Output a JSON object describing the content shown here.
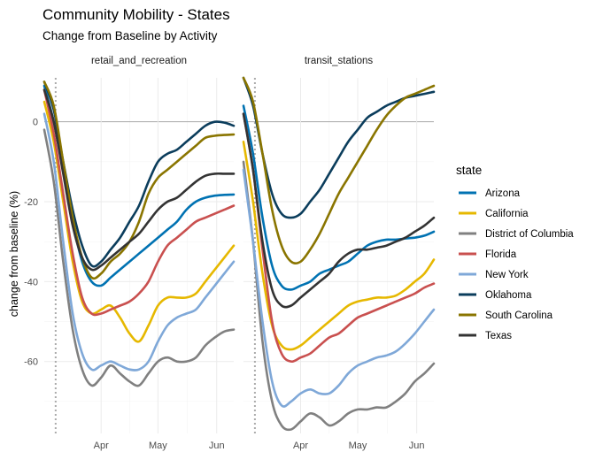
{
  "chart_data": {
    "type": "line",
    "title": "Community Mobility - States",
    "subtitle": "Change from Baseline by Activity",
    "ylabel": "change from baseline (%)",
    "xlabel": "",
    "ylim": [
      -78,
      11
    ],
    "y_ticks": [
      0,
      -20,
      -40,
      -60
    ],
    "x_range_days": [
      0,
      100
    ],
    "x_ticks": [
      {
        "label": "Apr",
        "day": 30
      },
      {
        "label": "May",
        "day": 60
      },
      {
        "label": "Jun",
        "day": 91
      }
    ],
    "reference_day": 6,
    "legend_title": "state",
    "legend_position": "right",
    "grid": true,
    "panels": [
      {
        "name": "retail_and_recreation",
        "series": [
          {
            "name": "Arizona",
            "color": "#0072b2",
            "x": [
              0,
              5,
              10,
              15,
              20,
              25,
              30,
              35,
              40,
              45,
              50,
              55,
              60,
              65,
              70,
              75,
              80,
              85,
              90,
              95,
              100
            ],
            "y": [
              9,
              0,
              -12,
              -25,
              -35,
              -40,
              -41,
              -39,
              -37,
              -35,
              -33,
              -31,
              -29,
              -27,
              -25,
              -22,
              -20,
              -19,
              -18.5,
              -18.3,
              -18.2
            ]
          },
          {
            "name": "California",
            "color": "#e6b800",
            "x": [
              0,
              5,
              10,
              15,
              20,
              25,
              30,
              35,
              40,
              45,
              50,
              55,
              60,
              65,
              70,
              75,
              80,
              85,
              90,
              95,
              100
            ],
            "y": [
              5,
              -5,
              -20,
              -35,
              -45,
              -48,
              -47,
              -46,
              -49,
              -53,
              -55,
              -51,
              -46,
              -44,
              -44,
              -44,
              -43,
              -40,
              -37,
              -34,
              -31
            ]
          },
          {
            "name": "District of Columbia",
            "color": "#808080",
            "x": [
              0,
              5,
              10,
              15,
              20,
              25,
              30,
              35,
              40,
              45,
              50,
              55,
              60,
              65,
              70,
              75,
              80,
              85,
              90,
              95,
              100
            ],
            "y": [
              -2,
              -15,
              -35,
              -52,
              -62,
              -66,
              -64,
              -61,
              -63,
              -65,
              -66,
              -63,
              -60,
              -59,
              -60,
              -60,
              -59,
              -56,
              -54,
              -52.5,
              -52
            ]
          },
          {
            "name": "Florida",
            "color": "#c9504f",
            "x": [
              0,
              5,
              10,
              15,
              20,
              25,
              30,
              35,
              40,
              45,
              50,
              55,
              60,
              65,
              70,
              75,
              80,
              85,
              90,
              95,
              100
            ],
            "y": [
              8,
              -3,
              -18,
              -33,
              -44,
              -48,
              -48,
              -47,
              -46,
              -45,
              -43,
              -40,
              -35,
              -31,
              -29,
              -27,
              -25,
              -24,
              -23,
              -22,
              -21
            ]
          },
          {
            "name": "New York",
            "color": "#7fa8d8",
            "x": [
              0,
              5,
              10,
              15,
              20,
              25,
              30,
              35,
              40,
              45,
              50,
              55,
              60,
              65,
              70,
              75,
              80,
              85,
              90,
              95,
              100
            ],
            "y": [
              2,
              -10,
              -30,
              -48,
              -58,
              -62,
              -61,
              -60,
              -61,
              -62,
              -62,
              -60,
              -55,
              -51,
              -49,
              -48,
              -47,
              -44,
              -41,
              -38,
              -35
            ]
          },
          {
            "name": "Oklahoma",
            "color": "#0b3d5c",
            "x": [
              0,
              5,
              10,
              15,
              20,
              25,
              30,
              35,
              40,
              45,
              50,
              55,
              60,
              65,
              70,
              75,
              80,
              85,
              90,
              95,
              100
            ],
            "y": [
              10,
              3,
              -10,
              -22,
              -31,
              -36,
              -35,
              -32,
              -29,
              -25,
              -21,
              -15,
              -10,
              -8,
              -7,
              -5,
              -3,
              -1,
              0,
              -0.2,
              -1
            ]
          },
          {
            "name": "South Carolina",
            "color": "#8a7500",
            "x": [
              0,
              5,
              10,
              15,
              20,
              25,
              30,
              35,
              40,
              45,
              50,
              55,
              60,
              65,
              70,
              75,
              80,
              85,
              90,
              95,
              100
            ],
            "y": [
              10,
              4,
              -10,
              -24,
              -34,
              -39,
              -38,
              -35,
              -33,
              -30,
              -25,
              -18,
              -14,
              -12,
              -10,
              -8,
              -6,
              -4,
              -3.5,
              -3.3,
              -3.2
            ]
          },
          {
            "name": "Texas",
            "color": "#333333",
            "x": [
              0,
              5,
              10,
              15,
              20,
              25,
              30,
              35,
              40,
              45,
              50,
              55,
              60,
              65,
              70,
              75,
              80,
              85,
              90,
              95,
              100
            ],
            "y": [
              8,
              0,
              -13,
              -26,
              -34,
              -37,
              -36,
              -34,
              -32,
              -30,
              -28,
              -25,
              -22,
              -20,
              -19,
              -17,
              -15,
              -13.5,
              -13,
              -13,
              -13
            ]
          }
        ]
      },
      {
        "name": "transit_stations",
        "series": [
          {
            "name": "Arizona",
            "color": "#0072b2",
            "x": [
              0,
              5,
              10,
              15,
              20,
              25,
              30,
              35,
              40,
              45,
              50,
              55,
              60,
              65,
              70,
              75,
              80,
              85,
              90,
              95,
              100
            ],
            "y": [
              4,
              -8,
              -24,
              -36,
              -41,
              -42,
              -41,
              -40,
              -38,
              -37,
              -36,
              -35,
              -33,
              -31,
              -30,
              -29.5,
              -29.5,
              -29.2,
              -29,
              -28.5,
              -27.5
            ]
          },
          {
            "name": "California",
            "color": "#e6b800",
            "x": [
              0,
              5,
              10,
              15,
              20,
              25,
              30,
              35,
              40,
              45,
              50,
              55,
              60,
              65,
              70,
              75,
              80,
              85,
              90,
              95,
              100
            ],
            "y": [
              -5,
              -20,
              -38,
              -51,
              -56,
              -57,
              -56,
              -54,
              -52,
              -50,
              -48,
              -46,
              -45,
              -44.5,
              -44,
              -44,
              -43.5,
              -42,
              -40,
              -38,
              -34.5
            ]
          },
          {
            "name": "District of Columbia",
            "color": "#808080",
            "x": [
              0,
              5,
              10,
              15,
              20,
              25,
              30,
              35,
              40,
              45,
              50,
              55,
              60,
              65,
              70,
              75,
              80,
              85,
              90,
              95,
              100
            ],
            "y": [
              -10,
              -30,
              -55,
              -70,
              -76,
              -77,
              -75,
              -73,
              -74,
              -76,
              -75,
              -73,
              -72,
              -72,
              -71.5,
              -71.5,
              -70,
              -68,
              -65,
              -63,
              -60.5
            ]
          },
          {
            "name": "Florida",
            "color": "#c9504f",
            "x": [
              0,
              5,
              10,
              15,
              20,
              25,
              30,
              35,
              40,
              45,
              50,
              55,
              60,
              65,
              70,
              75,
              80,
              85,
              90,
              95,
              100
            ],
            "y": [
              2,
              -12,
              -32,
              -50,
              -58,
              -60,
              -59,
              -58,
              -56,
              -54,
              -53,
              -51,
              -49,
              -48,
              -47,
              -46,
              -45,
              -44,
              -43,
              -41.5,
              -40.5
            ]
          },
          {
            "name": "New York",
            "color": "#7fa8d8",
            "x": [
              0,
              5,
              10,
              15,
              20,
              25,
              30,
              35,
              40,
              45,
              50,
              55,
              60,
              65,
              70,
              75,
              80,
              85,
              90,
              95,
              100
            ],
            "y": [
              -12,
              -30,
              -50,
              -65,
              -71,
              -70,
              -68,
              -67,
              -68,
              -68,
              -66,
              -63,
              -61,
              -60,
              -59,
              -58.5,
              -57.5,
              -55.5,
              -53,
              -50,
              -47
            ]
          },
          {
            "name": "Oklahoma",
            "color": "#0b3d5c",
            "x": [
              0,
              5,
              10,
              15,
              20,
              25,
              30,
              35,
              40,
              45,
              50,
              55,
              60,
              65,
              70,
              75,
              80,
              85,
              90,
              95,
              100
            ],
            "y": [
              11,
              4,
              -8,
              -18,
              -23,
              -24,
              -23,
              -20,
              -17,
              -13,
              -9,
              -5,
              -2,
              1,
              2.5,
              4,
              5,
              6,
              6.5,
              7,
              7.5
            ]
          },
          {
            "name": "South Carolina",
            "color": "#8a7500",
            "x": [
              0,
              5,
              10,
              15,
              20,
              25,
              30,
              35,
              40,
              45,
              50,
              55,
              60,
              65,
              70,
              75,
              80,
              85,
              90,
              95,
              100
            ],
            "y": [
              11,
              5,
              -8,
              -22,
              -31,
              -35,
              -35,
              -32,
              -28,
              -23,
              -18,
              -14,
              -10,
              -6,
              -2,
              1.5,
              4,
              6,
              7,
              8,
              9
            ]
          },
          {
            "name": "Texas",
            "color": "#333333",
            "x": [
              0,
              5,
              10,
              15,
              20,
              25,
              30,
              35,
              40,
              45,
              50,
              55,
              60,
              65,
              70,
              75,
              80,
              85,
              90,
              95,
              100
            ],
            "y": [
              2,
              -12,
              -30,
              -42,
              -46,
              -46,
              -44,
              -42,
              -40,
              -38,
              -35,
              -33,
              -32,
              -32,
              -31.5,
              -31,
              -30,
              -29,
              -27.5,
              -26,
              -24
            ]
          }
        ]
      }
    ]
  }
}
